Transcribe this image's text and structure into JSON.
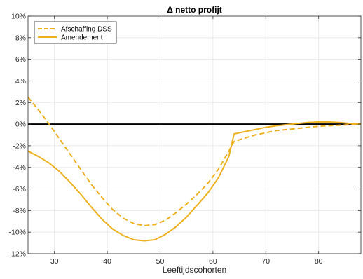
{
  "chart_data": {
    "type": "line",
    "title": "Δ netto profijt",
    "xlabel": "Leeftijdscohorten",
    "ylabel": "",
    "xlim": [
      25,
      88
    ],
    "ylim": [
      -12,
      10
    ],
    "xticks": [
      30,
      40,
      50,
      60,
      70,
      80
    ],
    "xtick_labels": [
      "30",
      "40",
      "50",
      "60",
      "70",
      "80"
    ],
    "yticks": [
      -12,
      -10,
      -8,
      -6,
      -4,
      -2,
      0,
      2,
      4,
      6,
      8,
      10
    ],
    "ytick_labels": [
      "-12%",
      "-10%",
      "-8%",
      "-6%",
      "-4%",
      "-2%",
      "0%",
      "2%",
      "4%",
      "6%",
      "8%",
      "10%"
    ],
    "grid": true,
    "legend_position": "top-left",
    "zero_line": true,
    "colors": {
      "series": "#EDB120",
      "zero_line": "#000000",
      "grid": "#e6e6e6",
      "axes": "#262626"
    },
    "series": [
      {
        "name": "Afschaffing DSS",
        "style": "dashed",
        "x": [
          25,
          27,
          29,
          31,
          33,
          35,
          37,
          39,
          41,
          43,
          45,
          47,
          49,
          51,
          53,
          55,
          57,
          59,
          61,
          63,
          64,
          66,
          68,
          70,
          72,
          74,
          76,
          78,
          80,
          82,
          84,
          86,
          88
        ],
        "y": [
          2.5,
          1.3,
          0.0,
          -1.4,
          -2.8,
          -4.2,
          -5.6,
          -6.8,
          -7.9,
          -8.7,
          -9.2,
          -9.4,
          -9.3,
          -8.9,
          -8.2,
          -7.4,
          -6.5,
          -5.5,
          -4.2,
          -2.5,
          -1.6,
          -1.3,
          -1.0,
          -0.8,
          -0.6,
          -0.5,
          -0.4,
          -0.3,
          -0.2,
          -0.15,
          -0.1,
          -0.05,
          0.0
        ]
      },
      {
        "name": "Amendement",
        "style": "solid",
        "x": [
          25,
          27,
          29,
          31,
          33,
          35,
          37,
          39,
          41,
          43,
          45,
          47,
          49,
          51,
          53,
          55,
          57,
          59,
          61,
          63,
          64,
          66,
          68,
          70,
          72,
          74,
          76,
          78,
          80,
          82,
          84,
          86,
          88
        ],
        "y": [
          -2.5,
          -3.0,
          -3.6,
          -4.4,
          -5.4,
          -6.5,
          -7.7,
          -8.8,
          -9.7,
          -10.3,
          -10.7,
          -10.8,
          -10.7,
          -10.2,
          -9.5,
          -8.6,
          -7.5,
          -6.4,
          -5.0,
          -3.0,
          -0.9,
          -0.7,
          -0.5,
          -0.3,
          -0.15,
          -0.05,
          0.05,
          0.15,
          0.2,
          0.2,
          0.15,
          0.05,
          0.0
        ]
      }
    ]
  }
}
